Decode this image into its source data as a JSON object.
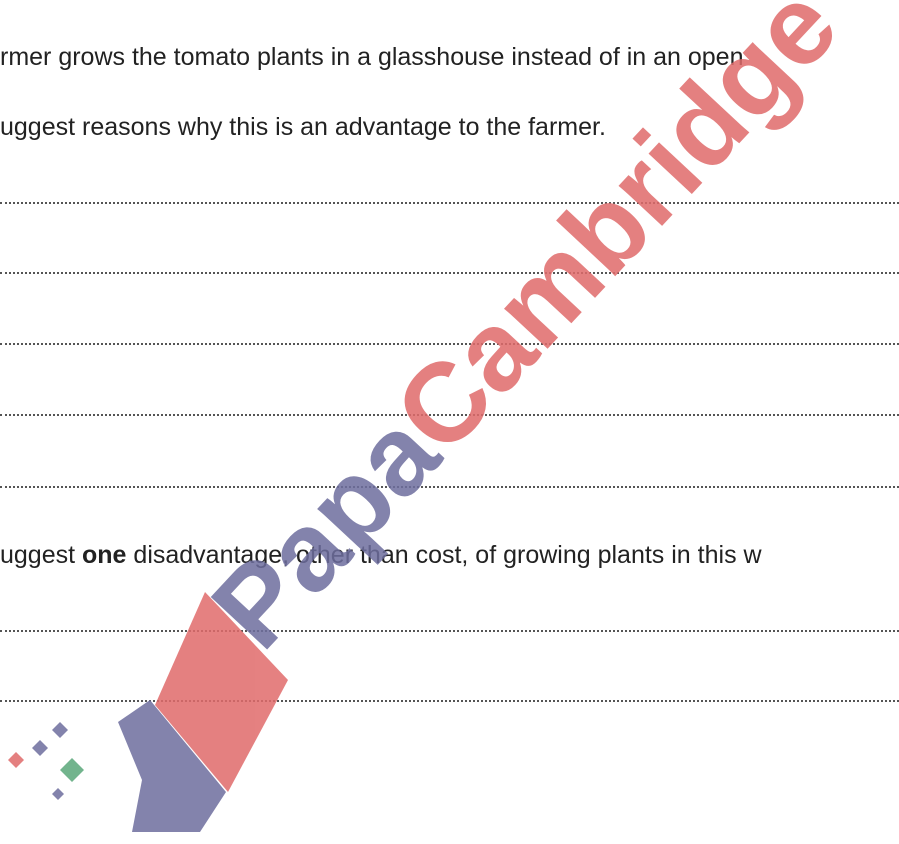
{
  "question": {
    "line1": "rmer grows the tomato plants in a glasshouse instead of in an open",
    "line2": "uggest reasons why this is an advantage to the farmer.",
    "line3": {
      "before": "uggest ",
      "bold": "one",
      "after": " disadvantage, other than cost, of growing plants in this w"
    }
  },
  "watermark": {
    "part1": "Papa",
    "part2": "Cambridge"
  }
}
